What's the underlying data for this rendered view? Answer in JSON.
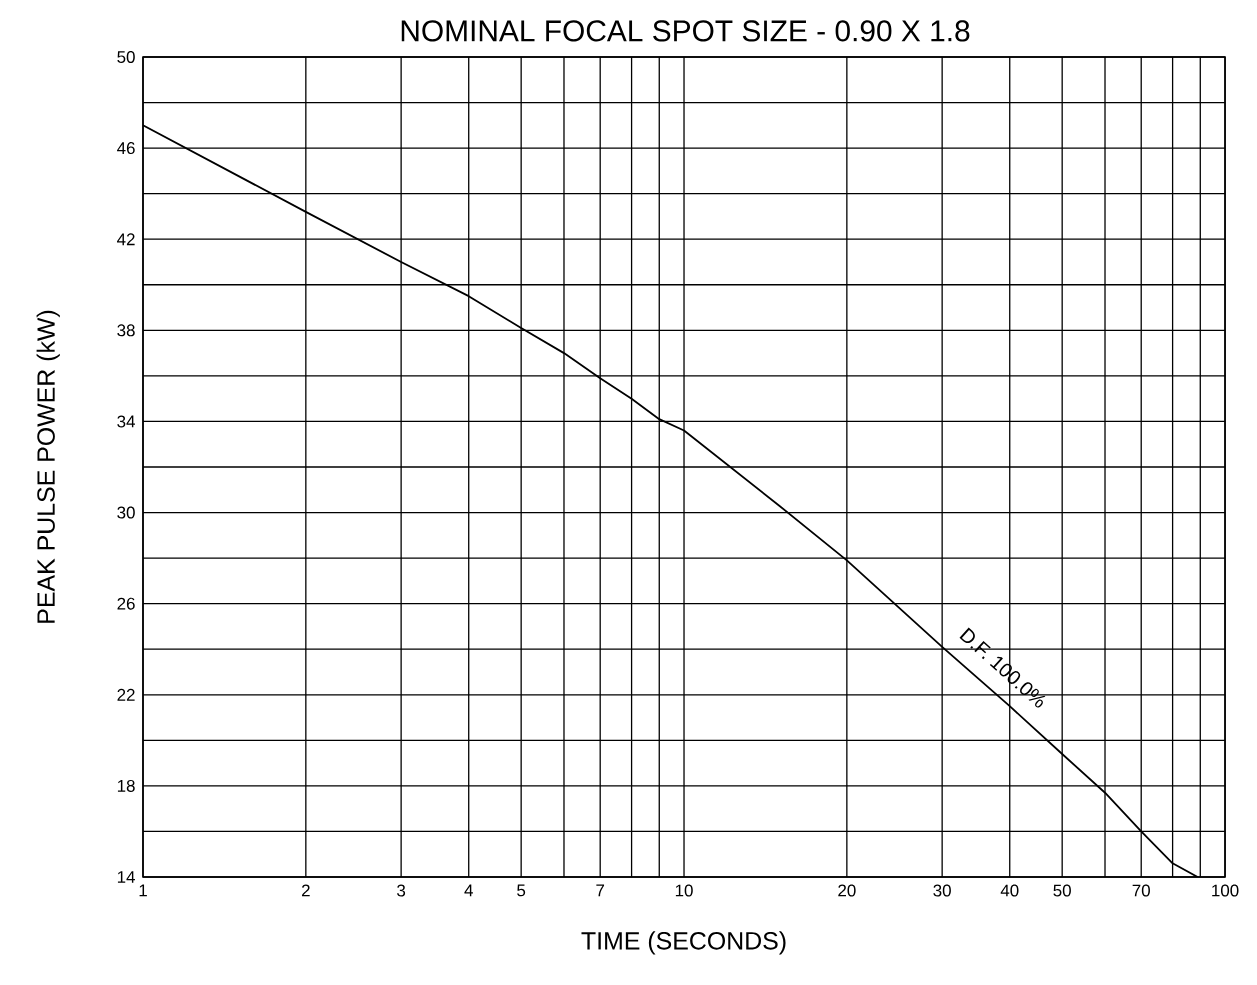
{
  "chart_data": {
    "type": "line",
    "title": "NOMINAL FOCAL SPOT SIZE - 0.90 X 1.8",
    "xlabel": "TIME (SECONDS)",
    "ylabel": "PEAK PULSE POWER (kW)",
    "log": "x",
    "grid": true,
    "marker": "none",
    "line_style": "solid",
    "xlim": [
      1,
      100
    ],
    "ylim": [
      14,
      50
    ],
    "xticks": [
      1,
      2,
      3,
      4,
      5,
      {
        "value": 6,
        "label": null
      },
      7,
      {
        "value": 8,
        "label": null
      },
      {
        "value": 9,
        "label": null
      },
      10,
      20,
      30,
      40,
      50,
      {
        "value": 60,
        "label": null
      },
      70,
      {
        "value": 80,
        "label": null
      },
      {
        "value": 90,
        "label": null
      },
      100
    ],
    "yticks": [
      14,
      {
        "value": 16,
        "label": null
      },
      18,
      {
        "value": 20,
        "label": null
      },
      22,
      {
        "value": 24,
        "label": null
      },
      26,
      {
        "value": 28,
        "label": null
      },
      30,
      {
        "value": 32,
        "label": null
      },
      34,
      {
        "value": 36,
        "label": null
      },
      38,
      {
        "value": 40,
        "label": null
      },
      42,
      {
        "value": 44,
        "label": null
      },
      46,
      {
        "value": 48,
        "label": null
      },
      50
    ],
    "series": [
      {
        "color": "#000000",
        "x": [
          1,
          2,
          3,
          4,
          5,
          6,
          7,
          8,
          9,
          10,
          15,
          20,
          30,
          40,
          50,
          60,
          70,
          80,
          89
        ],
        "values": [
          47,
          43.2,
          41,
          39.5,
          38.1,
          37,
          35.9,
          35,
          34.1,
          33.6,
          30.3,
          27.9,
          24.1,
          21.5,
          19.4,
          17.7,
          16,
          14.6,
          14
        ]
      }
    ],
    "annotations": [
      "D.F. 100.0%"
    ]
  }
}
